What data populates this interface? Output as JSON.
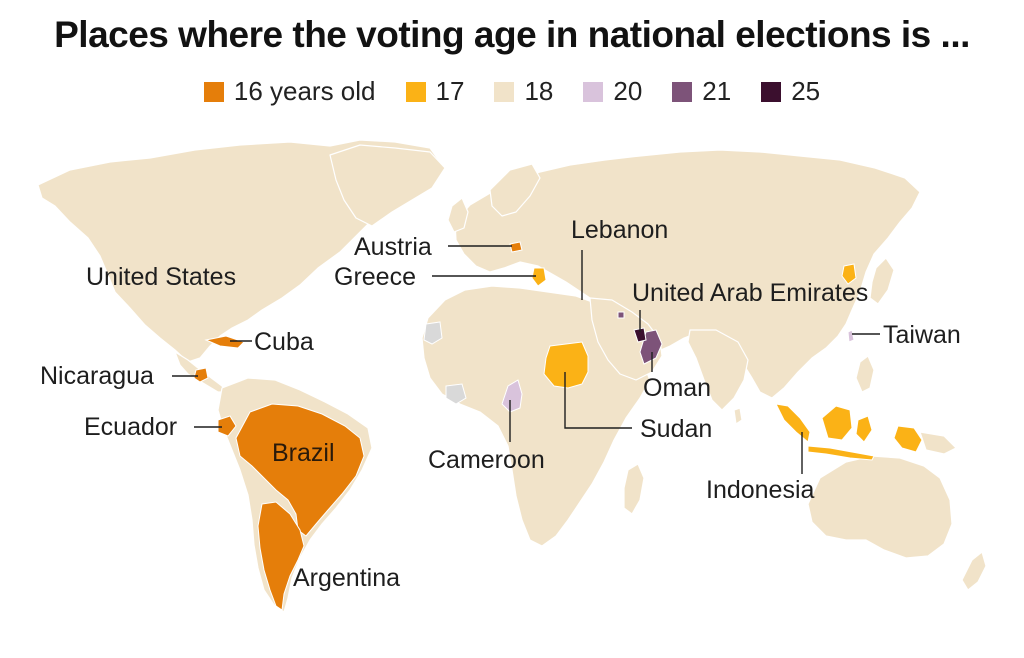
{
  "title": "Places where the voting age in national elections is ...",
  "legend": [
    {
      "label": "16 years old",
      "color": "#e57e0a"
    },
    {
      "label": "17",
      "color": "#fbb216"
    },
    {
      "label": "18",
      "color": "#f1e3c9"
    },
    {
      "label": "20",
      "color": "#d9c3dc"
    },
    {
      "label": "21",
      "color": "#7d5379"
    },
    {
      "label": "25",
      "color": "#3b0f2e"
    }
  ],
  "colors": {
    "age16": "#e57e0a",
    "age17": "#fbb216",
    "age18": "#f1e3c9",
    "age20": "#d9c3dc",
    "age21": "#7d5379",
    "age25": "#3b0f2e",
    "nodata": "#d9d9d9",
    "border": "#ffffff"
  },
  "labels": {
    "united_states": "United States",
    "cuba": "Cuba",
    "nicaragua": "Nicaragua",
    "ecuador": "Ecuador",
    "brazil": "Brazil",
    "argentina": "Argentina",
    "austria": "Austria",
    "greece": "Greece",
    "lebanon": "Lebanon",
    "uae": "United Arab Emirates",
    "oman": "Oman",
    "sudan": "Sudan",
    "cameroon": "Cameroon",
    "taiwan": "Taiwan",
    "indonesia": "Indonesia"
  }
}
